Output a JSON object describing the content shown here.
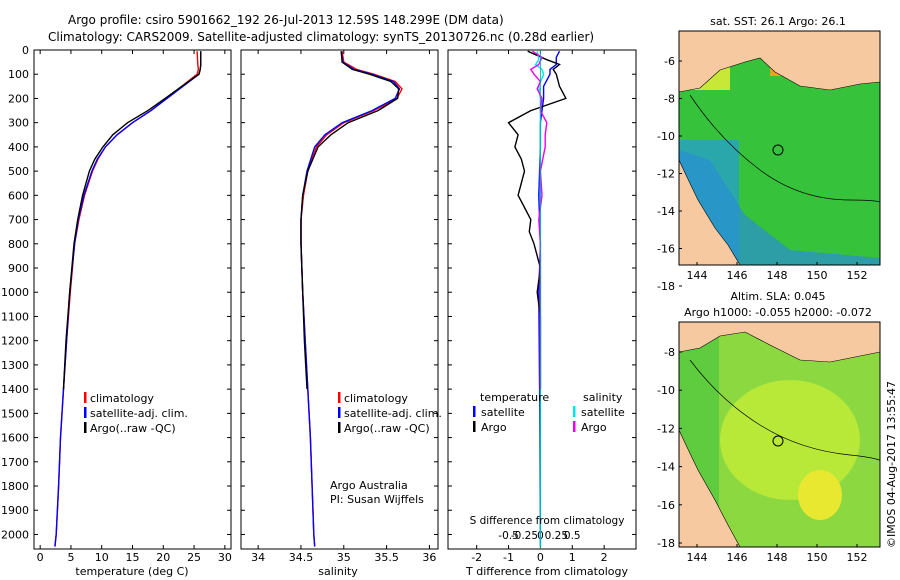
{
  "header": {
    "line1": "Argo profile: csiro 5901662_192 26-Jul-2013 12.59S 148.299E (DM data)",
    "line2": "Climatology: CARS2009. Satellite-adjusted climatology: synTS_20130726.nc (0.28d earlier)"
  },
  "credit": "©IMOS 04-Aug-2017 13:55:47",
  "colors": {
    "climatology": "#ff0000",
    "satellite": "#0000ff",
    "argo": "#000000",
    "sat_diff": "#00e5ee",
    "argo_diff": "#ee00ee",
    "land": "#f6c9a0",
    "ocean": "#3cc83c"
  },
  "chart_data": [
    {
      "type": "line",
      "id": "temperature",
      "xlabel": "temperature (deg C)",
      "ylabel": "",
      "xlim": [
        -1,
        31
      ],
      "ylim": [
        2060,
        0
      ],
      "xticks": [
        0,
        5,
        10,
        15,
        20,
        25,
        30
      ],
      "xtick_labels": [
        "0",
        "5",
        "10",
        "15",
        "20",
        "25",
        "30"
      ],
      "yticks": [
        0,
        100,
        200,
        300,
        400,
        500,
        600,
        700,
        800,
        900,
        1000,
        1100,
        1200,
        1300,
        1400,
        1500,
        1600,
        1700,
        1800,
        1900,
        2000
      ],
      "ytick_labels": [
        "0",
        "100",
        "200",
        "300",
        "400",
        "500",
        "600",
        "700",
        "800",
        "900",
        "1000",
        "1100",
        "1200",
        "1300",
        "1400",
        "1500",
        "1600",
        "1700",
        "1800",
        "1900",
        "2000"
      ],
      "legend": [
        "climatology",
        "satellite-adj. clim.",
        "Argo(..raw -QC)"
      ],
      "series": [
        {
          "name": "climatology",
          "depth": [
            5,
            60,
            80,
            100,
            150,
            200,
            250,
            300,
            350,
            400,
            450,
            500,
            600,
            700,
            800,
            1000,
            1200,
            1400,
            1600,
            1800,
            2000,
            2050
          ],
          "values": [
            25.5,
            25.6,
            25.7,
            25.5,
            23.0,
            20.5,
            18.0,
            15.0,
            12.5,
            10.6,
            9.4,
            8.5,
            7.2,
            6.3,
            5.6,
            4.9,
            4.3,
            3.8,
            3.3,
            3.0,
            2.6,
            2.4
          ]
        },
        {
          "name": "satellite-adj. clim.",
          "depth": [
            5,
            60,
            80,
            100,
            150,
            200,
            250,
            300,
            350,
            400,
            450,
            500,
            600,
            700,
            800,
            1000,
            1200,
            1400,
            1600,
            1800,
            2000,
            2050
          ],
          "values": [
            26.1,
            26.1,
            26.0,
            25.8,
            23.2,
            20.6,
            18.0,
            15.0,
            12.5,
            10.6,
            9.3,
            8.4,
            7.1,
            6.2,
            5.6,
            4.8,
            4.3,
            3.8,
            3.3,
            3.0,
            2.6,
            2.4
          ]
        },
        {
          "name": "Argo(..raw -QC)",
          "depth": [
            5,
            60,
            80,
            100,
            150,
            200,
            250,
            300,
            350,
            400,
            450,
            500,
            600,
            700,
            800,
            1000,
            1200,
            1400
          ],
          "values": [
            26.1,
            26.1,
            26.0,
            25.8,
            23.0,
            20.3,
            17.5,
            14.2,
            11.8,
            10.2,
            8.9,
            8.0,
            6.9,
            6.1,
            5.5,
            4.8,
            4.2,
            3.8
          ]
        }
      ]
    },
    {
      "type": "line",
      "id": "salinity",
      "xlabel": "salinity",
      "xlim": [
        33.8,
        36.1
      ],
      "ylim": [
        2060,
        0
      ],
      "xticks": [
        34,
        34.5,
        35,
        35.5,
        36
      ],
      "xtick_labels": [
        "34",
        "34.5",
        "35",
        "35.5",
        "36"
      ],
      "legend": [
        "climatology",
        "satellite-adj. clim.",
        "Argo(..raw -QC)"
      ],
      "annotation": [
        "Argo Australia",
        "PI: Susan Wijffels"
      ],
      "series": [
        {
          "name": "climatology",
          "depth": [
            5,
            50,
            80,
            100,
            130,
            160,
            200,
            250,
            300,
            350,
            400,
            500,
            600,
            700,
            800,
            1000,
            1200,
            1400,
            1600,
            1800,
            2000,
            2050
          ],
          "values": [
            34.98,
            35.0,
            35.15,
            35.35,
            35.6,
            35.68,
            35.62,
            35.35,
            35.0,
            34.8,
            34.68,
            34.58,
            34.53,
            34.5,
            34.5,
            34.52,
            34.55,
            34.58,
            34.61,
            34.63,
            34.65,
            34.66
          ]
        },
        {
          "name": "satellite-adj. clim.",
          "depth": [
            5,
            50,
            80,
            100,
            130,
            160,
            200,
            250,
            300,
            350,
            400,
            500,
            600,
            700,
            800,
            1000,
            1200,
            1400,
            1600,
            1800,
            2000,
            2050
          ],
          "values": [
            34.97,
            34.99,
            35.12,
            35.33,
            35.58,
            35.65,
            35.6,
            35.33,
            34.98,
            34.78,
            34.66,
            34.57,
            34.52,
            34.5,
            34.5,
            34.52,
            34.55,
            34.58,
            34.61,
            34.63,
            34.65,
            34.66
          ]
        },
        {
          "name": "Argo(..raw -QC)",
          "depth": [
            5,
            50,
            80,
            100,
            130,
            160,
            200,
            250,
            300,
            350,
            400,
            500,
            600,
            700,
            800,
            1000,
            1200,
            1400
          ],
          "values": [
            34.97,
            34.98,
            35.1,
            35.3,
            35.55,
            35.64,
            35.63,
            35.4,
            35.05,
            34.85,
            34.7,
            34.58,
            34.52,
            34.5,
            34.5,
            34.52,
            34.54,
            34.57
          ]
        }
      ]
    },
    {
      "type": "line",
      "id": "differences",
      "xlabel": "T difference from climatology",
      "xlabel2": "S difference from climatology",
      "xlim": [
        -2.9,
        3.0
      ],
      "ylim": [
        2060,
        0
      ],
      "xticks": [
        -2,
        -1,
        0,
        1,
        2
      ],
      "xtick_labels": [
        "-2",
        "-1",
        "0",
        "1",
        "2"
      ],
      "sticks": [
        -1,
        -0.5,
        0,
        0.5,
        1
      ],
      "stick_labels": [
        "-0.5",
        "-0.25",
        "0",
        "0.25",
        "0.5"
      ],
      "legend_temperature_title": "temperature",
      "legend_salinity_title": "salinity",
      "legend": [
        "satellite",
        "Argo"
      ],
      "series": [
        {
          "name": "T satellite",
          "depth": [
            5,
            30,
            60,
            80,
            100,
            150,
            200,
            300,
            400,
            600,
            800,
            1000,
            1500,
            2050
          ],
          "values": [
            0.6,
            0.5,
            0.5,
            0.3,
            0.3,
            0.1,
            0.1,
            0.0,
            0.0,
            -0.05,
            0.0,
            -0.05,
            -0.02,
            0.0
          ]
        },
        {
          "name": "T Argo",
          "depth": [
            5,
            40,
            60,
            80,
            100,
            150,
            200,
            250,
            300,
            350,
            400,
            450,
            500,
            550,
            600,
            650,
            700,
            750,
            800,
            850,
            900,
            950,
            1000,
            1100,
            1200,
            1300,
            1400
          ],
          "values": [
            -0.4,
            0.2,
            0.6,
            0.4,
            0.5,
            0.6,
            0.8,
            -0.3,
            -1.0,
            -0.7,
            -0.8,
            -0.6,
            -0.5,
            -0.6,
            -0.7,
            -0.5,
            -0.3,
            -0.35,
            -0.2,
            -0.1,
            0.0,
            -0.05,
            -0.1,
            0.0,
            0.0,
            0.0,
            0.0
          ]
        },
        {
          "name": "S satellite",
          "depth": [
            5,
            40,
            60,
            80,
            100,
            150,
            200,
            300,
            400,
            500,
            600,
            800,
            1000,
            1500,
            2050
          ],
          "values": [
            -0.1,
            -0.05,
            -0.15,
            0.05,
            0.1,
            -0.05,
            0.0,
            0.0,
            0.0,
            0.0,
            0.0,
            0.0,
            0.0,
            0.0,
            0.0
          ]
        },
        {
          "name": "S Argo",
          "depth": [
            5,
            30,
            60,
            80,
            100,
            130,
            160,
            200,
            250,
            300,
            350,
            400,
            500,
            600,
            700,
            800,
            1000,
            1200,
            1400
          ],
          "values": [
            -0.25,
            0.05,
            -0.05,
            -0.3,
            -0.2,
            0.0,
            -0.1,
            0.05,
            0.0,
            0.2,
            0.15,
            0.15,
            0.0,
            0.05,
            -0.05,
            0.0,
            0.0,
            0.0,
            0.0
          ]
        }
      ]
    }
  ],
  "maps": {
    "sst": {
      "title": "sat. SST: 26.1  Argo: 26.1",
      "xticks": [
        "144",
        "146",
        "148",
        "150",
        "152"
      ],
      "yticks": [
        "-6",
        "-8",
        "-10",
        "-12",
        "-14",
        "-16",
        "-18"
      ]
    },
    "sla": {
      "title1": "Altim. SLA: 0.045",
      "title2": "Argo h1000: -0.055 h2000: -0.072",
      "xticks": [
        "144",
        "146",
        "148",
        "150",
        "152"
      ],
      "yticks": [
        "-8",
        "-10",
        "-12",
        "-14",
        "-16",
        "-18"
      ]
    }
  }
}
